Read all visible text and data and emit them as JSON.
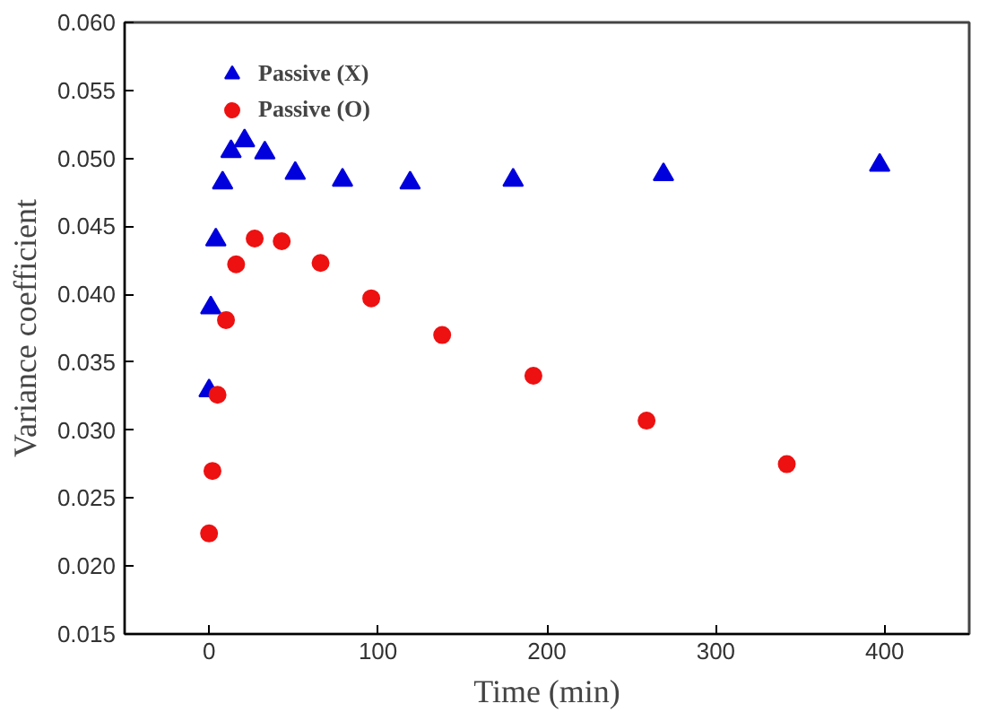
{
  "chart_data": {
    "type": "scatter",
    "xlabel": "Time (min)",
    "ylabel": "Variance coefficient",
    "xlim": [
      -50,
      450
    ],
    "xticks": [
      0,
      100,
      200,
      300,
      400
    ],
    "ylim": [
      0.015,
      0.06
    ],
    "yticks": [
      {
        "value": 0.015,
        "label": "0.015"
      },
      {
        "value": 0.02,
        "label": "0.020"
      },
      {
        "value": 0.025,
        "label": "0.025"
      },
      {
        "value": 0.03,
        "label": "0.030"
      },
      {
        "value": 0.035,
        "label": "0.035"
      },
      {
        "value": 0.04,
        "label": "0.040"
      },
      {
        "value": 0.045,
        "label": "0.045"
      },
      {
        "value": 0.05,
        "label": "0.050"
      },
      {
        "value": 0.055,
        "label": "0.055"
      },
      {
        "value": 0.06,
        "label": "0.060"
      }
    ],
    "grid": false,
    "legend": "top left",
    "series": [
      {
        "name": "Passive (X)",
        "color": "#0000dd",
        "marker": "triangle",
        "x": [
          0,
          1,
          4,
          8,
          13,
          21,
          33,
          51,
          79,
          119,
          180,
          269,
          397
        ],
        "values": [
          0.0329,
          0.039,
          0.044,
          0.0482,
          0.0505,
          0.0513,
          0.0504,
          0.0489,
          0.0484,
          0.0482,
          0.0484,
          0.0488,
          0.0495
        ]
      },
      {
        "name": "Passive (O)",
        "color": "#ee1111",
        "marker": "circle",
        "x": [
          0,
          2,
          5,
          10,
          16,
          27,
          43,
          66,
          96,
          138,
          192,
          259,
          342
        ],
        "values": [
          0.0224,
          0.027,
          0.0326,
          0.0381,
          0.0422,
          0.0441,
          0.0439,
          0.0423,
          0.0397,
          0.037,
          0.034,
          0.0307,
          0.0275
        ]
      }
    ]
  }
}
